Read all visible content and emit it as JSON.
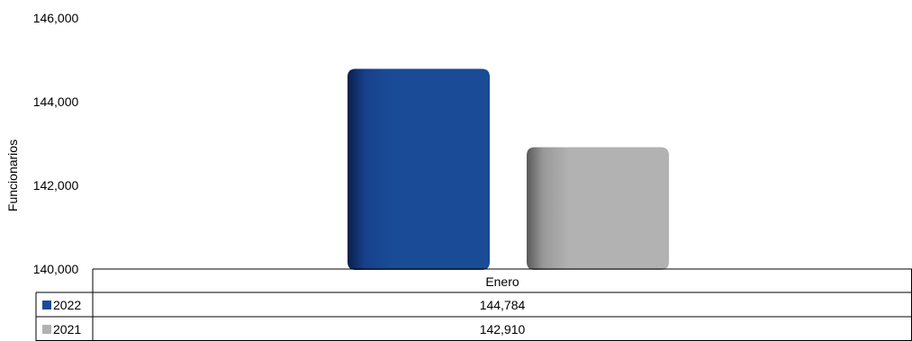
{
  "chart_data": {
    "type": "bar",
    "ylabel": "Funcionarios",
    "categories": [
      "Enero"
    ],
    "ylim": [
      140000,
      146000
    ],
    "yticks": [
      "140,000",
      "142,000",
      "144,000",
      "146,000"
    ],
    "grid": false,
    "legend": "data-table-left",
    "series": [
      {
        "name": "2022",
        "values": [
          144784
        ],
        "label": "144,784",
        "color": "#1a4b96"
      },
      {
        "name": "2021",
        "values": [
          142910
        ],
        "label": "142,910",
        "color": "#b2b2b2"
      }
    ]
  }
}
